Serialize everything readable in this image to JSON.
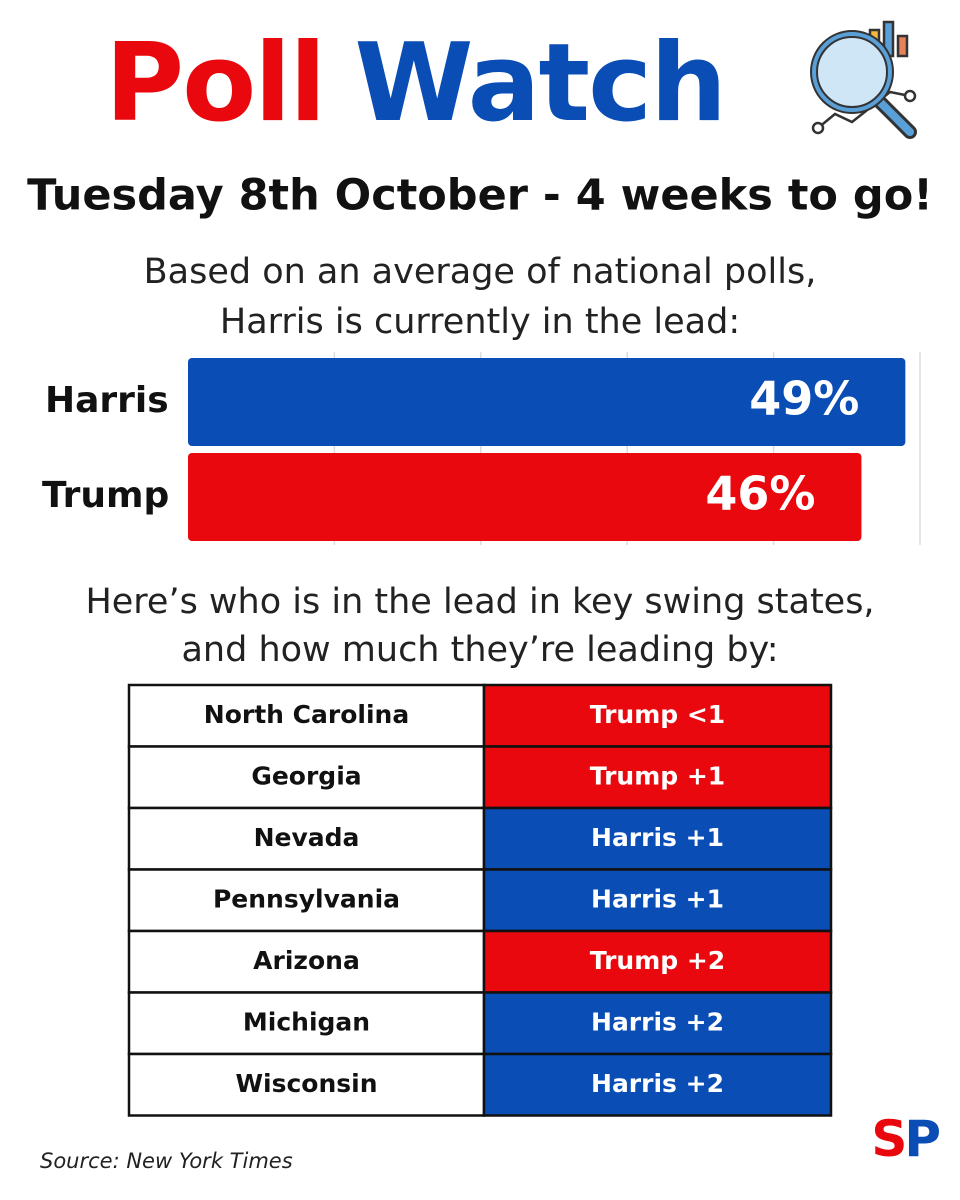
{
  "header": {
    "title_parts": [
      {
        "text": "Poll",
        "color": "#e8080d"
      },
      {
        "text": "Watch",
        "color": "#0a4db5"
      }
    ],
    "date": "Tuesday 8th October - 4 weeks to go!",
    "intro": [
      "Based on an average of national polls,",
      "Harris is currently in the lead:"
    ]
  },
  "chart_data": {
    "type": "bar",
    "orientation": "horizontal",
    "categories": [
      "Harris",
      "Trump"
    ],
    "values": [
      49,
      46
    ],
    "value_labels": [
      "49%",
      "46%"
    ],
    "colors": [
      "#0a4db5",
      "#e8080d"
    ],
    "xlim": [
      0,
      50
    ],
    "xticks": [
      10,
      20,
      30,
      40,
      50
    ],
    "grid": true
  },
  "swing_intro": [
    "Here’s who is in the lead in key swing states,",
    "and how much they’re leading by:"
  ],
  "table": {
    "rows": [
      {
        "state": "North Carolina",
        "lead": "Trump <1",
        "color": "#e8080d"
      },
      {
        "state": "Georgia",
        "lead": "Trump +1",
        "color": "#e8080d"
      },
      {
        "state": "Nevada",
        "lead": "Harris +1",
        "color": "#0a4db5"
      },
      {
        "state": "Pennsylvania",
        "lead": "Harris +1",
        "color": "#0a4db5"
      },
      {
        "state": "Arizona",
        "lead": "Trump +2",
        "color": "#e8080d"
      },
      {
        "state": "Michigan",
        "lead": "Harris +2",
        "color": "#0a4db5"
      },
      {
        "state": "Wisconsin",
        "lead": "Harris +2",
        "color": "#0a4db5"
      }
    ]
  },
  "footer": {
    "source": "Source: New York Times",
    "logo_parts": [
      {
        "text": "S",
        "color": "#e8080d"
      },
      {
        "text": "P",
        "color": "#0a4db5"
      }
    ]
  }
}
